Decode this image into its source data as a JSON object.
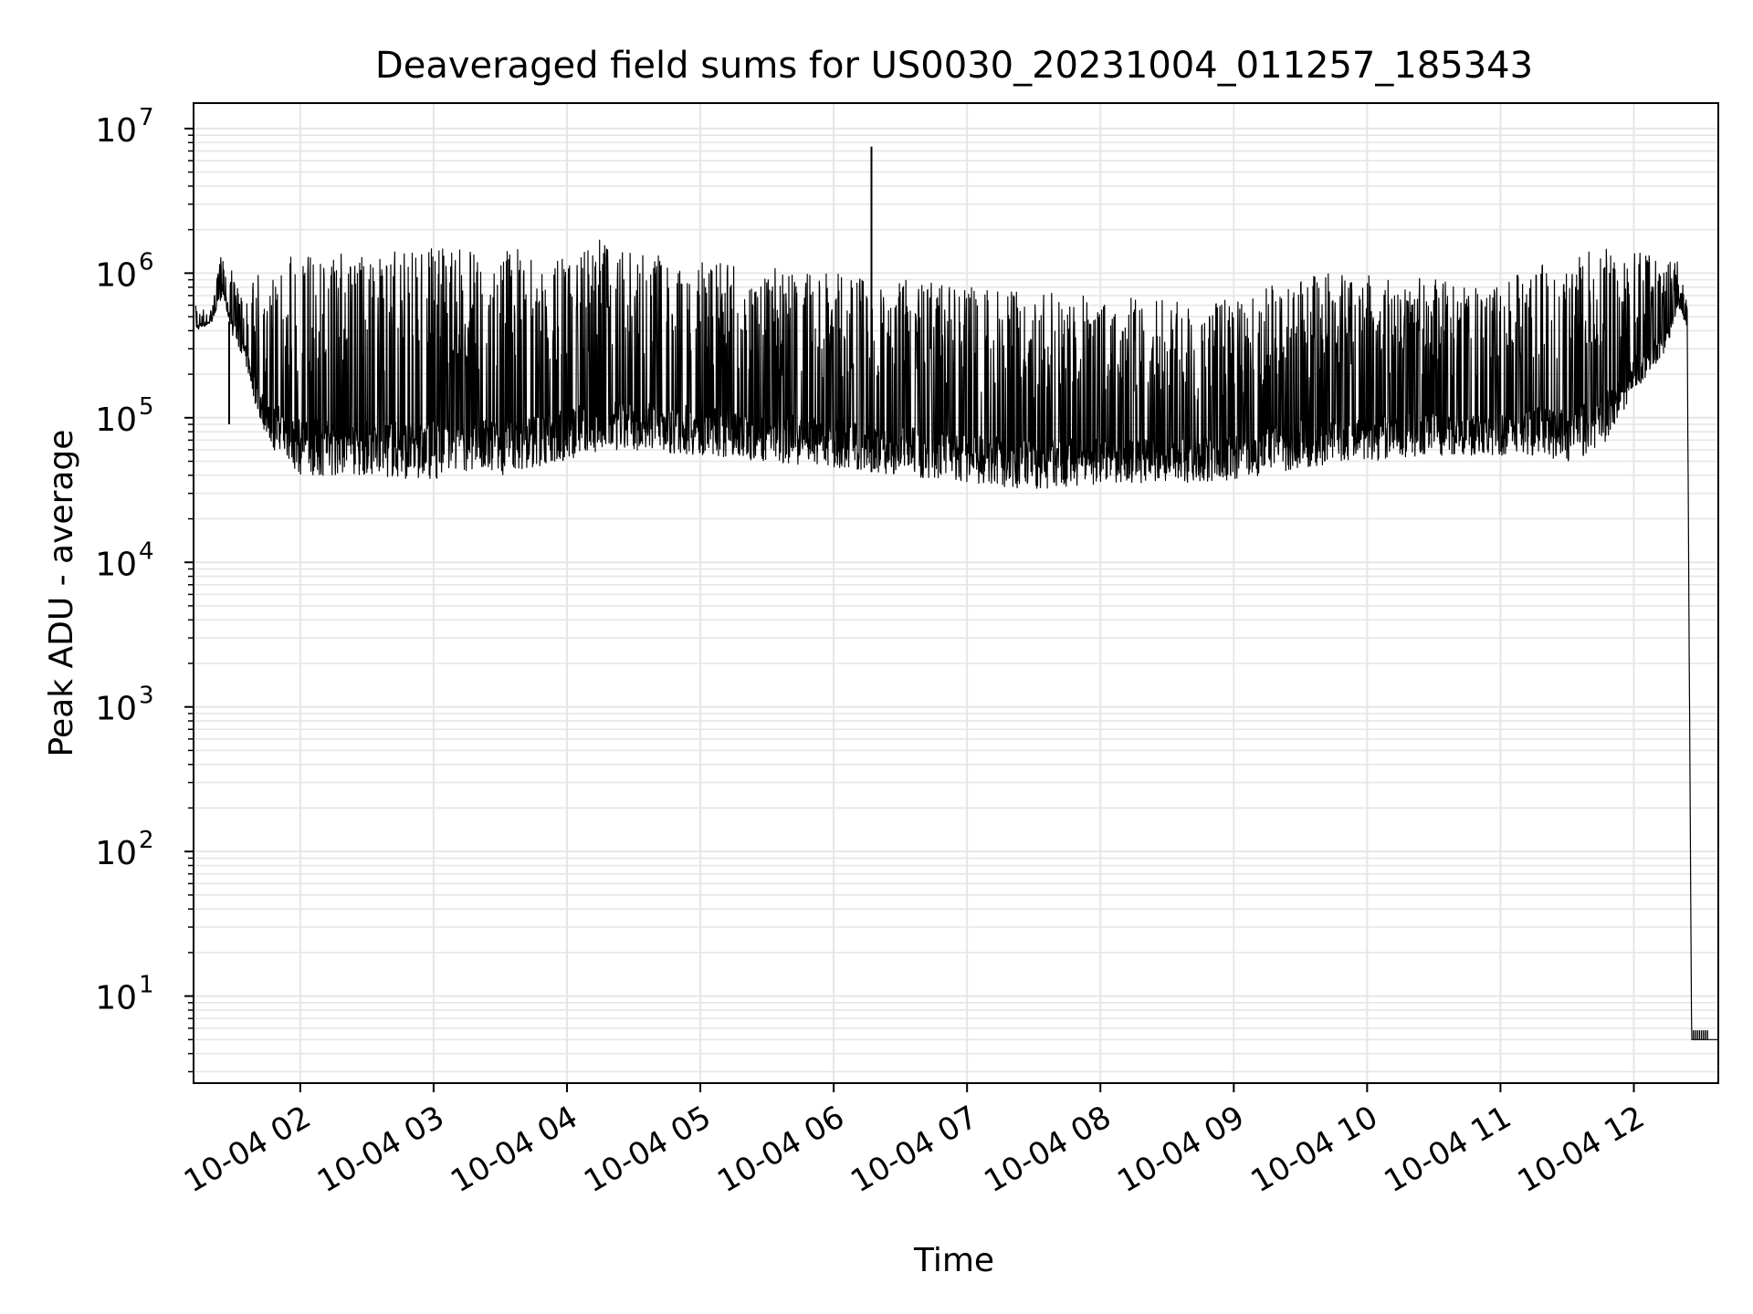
{
  "chart_data": {
    "type": "line",
    "title": "Deaveraged field sums for US0030_20231004_011257_185343",
    "xlabel": "Time",
    "ylabel": "Peak ADU - average",
    "yscale": "log",
    "grid": true,
    "legend": "none",
    "line_color": "#000000",
    "grid_color": "#e6e6e6",
    "xlim": [
      "2023-10-04 01:12",
      "2023-10-04 12:38"
    ],
    "ylim": [
      2.5,
      15000000
    ],
    "x_ticks": [
      "2023-10-04 02:00",
      "2023-10-04 03:00",
      "2023-10-04 04:00",
      "2023-10-04 05:00",
      "2023-10-04 06:00",
      "2023-10-04 07:00",
      "2023-10-04 08:00",
      "2023-10-04 09:00",
      "2023-10-04 10:00",
      "2023-10-04 11:00",
      "2023-10-04 12:00"
    ],
    "x_tick_labels": [
      "10-04 02",
      "10-04 03",
      "10-04 04",
      "10-04 05",
      "10-04 06",
      "10-04 07",
      "10-04 08",
      "10-04 09",
      "10-04 10",
      "10-04 11",
      "10-04 12"
    ],
    "y_ticks": [
      10,
      100,
      1000,
      10000,
      100000,
      1000000,
      10000000
    ],
    "y_tick_exponents": [
      "1",
      "2",
      "3",
      "4",
      "5",
      "6",
      "7"
    ],
    "y_tick_base": "10",
    "series": [
      {
        "upper_envelope": {
          "x": [
            "2023-10-04 01:13",
            "2023-10-04 01:20",
            "2023-10-04 01:25",
            "2023-10-04 01:30",
            "2023-10-04 01:35",
            "2023-10-04 01:40",
            "2023-10-04 01:45",
            "2023-10-04 01:50",
            "2023-10-04 02:00",
            "2023-10-04 02:15",
            "2023-10-04 02:30",
            "2023-10-04 02:45",
            "2023-10-04 03:00",
            "2023-10-04 03:15",
            "2023-10-04 03:30",
            "2023-10-04 04:00",
            "2023-10-04 04:15",
            "2023-10-04 04:30",
            "2023-10-04 05:00",
            "2023-10-04 05:30",
            "2023-10-04 06:00",
            "2023-10-04 06:30",
            "2023-10-04 07:00",
            "2023-10-04 07:30",
            "2023-10-04 08:00",
            "2023-10-04 08:30",
            "2023-10-04 09:00",
            "2023-10-04 09:30",
            "2023-10-04 10:00",
            "2023-10-04 10:30",
            "2023-10-04 11:00",
            "2023-10-04 11:15",
            "2023-10-04 11:30",
            "2023-10-04 11:45",
            "2023-10-04 12:00",
            "2023-10-04 12:15",
            "2023-10-04 12:20",
            "2023-10-04 12:24",
            "2023-10-04 12:26",
            "2023-10-04 12:38"
          ],
          "y": [
            600000,
            550000,
            1500000,
            1000000,
            700000,
            1300000,
            600000,
            1400000,
            1400000,
            1400000,
            1400000,
            1500000,
            1500000,
            1600000,
            1500000,
            1500000,
            1700000,
            1400000,
            1300000,
            1100000,
            1000000,
            900000,
            800000,
            750000,
            700000,
            650000,
            650000,
            1000000,
            1000000,
            900000,
            800000,
            1200000,
            1300000,
            1500000,
            1500000,
            1200000,
            1200000,
            600000,
            5,
            5
          ]
        },
        "lower_envelope": {
          "x": [
            "2023-10-04 01:13",
            "2023-10-04 01:20",
            "2023-10-04 01:25",
            "2023-10-04 01:30",
            "2023-10-04 01:35",
            "2023-10-04 01:40",
            "2023-10-04 01:45",
            "2023-10-04 01:50",
            "2023-10-04 02:00",
            "2023-10-04 02:15",
            "2023-10-04 02:30",
            "2023-10-04 02:45",
            "2023-10-04 03:00",
            "2023-10-04 03:15",
            "2023-10-04 03:30",
            "2023-10-04 04:00",
            "2023-10-04 04:15",
            "2023-10-04 04:30",
            "2023-10-04 05:00",
            "2023-10-04 05:30",
            "2023-10-04 06:00",
            "2023-10-04 06:30",
            "2023-10-04 07:00",
            "2023-10-04 07:30",
            "2023-10-04 08:00",
            "2023-10-04 08:30",
            "2023-10-04 09:00",
            "2023-10-04 09:30",
            "2023-10-04 10:00",
            "2023-10-04 10:30",
            "2023-10-04 11:00",
            "2023-10-04 11:15",
            "2023-10-04 11:30",
            "2023-10-04 11:45",
            "2023-10-04 12:00",
            "2023-10-04 12:15",
            "2023-10-04 12:20",
            "2023-10-04 12:24",
            "2023-10-04 12:26",
            "2023-10-04 12:38"
          ],
          "y": [
            400000,
            450000,
            700000,
            350000,
            250000,
            120000,
            70000,
            55000,
            40000,
            40000,
            40000,
            38000,
            38000,
            38000,
            40000,
            50000,
            55000,
            60000,
            55000,
            50000,
            45000,
            40000,
            35000,
            32000,
            35000,
            35000,
            37000,
            45000,
            50000,
            55000,
            55000,
            55000,
            50000,
            60000,
            150000,
            300000,
            600000,
            400000,
            5,
            5
          ]
        },
        "spikes": [
          {
            "x": "2023-10-04 01:28",
            "y": 90000
          },
          {
            "x": "2023-10-04 06:17",
            "y": 7500000
          }
        ]
      }
    ]
  }
}
